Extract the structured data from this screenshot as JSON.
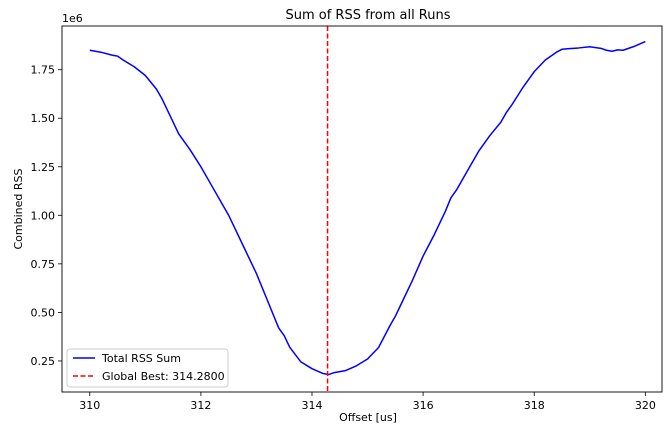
{
  "chart_data": {
    "type": "line",
    "title": "Sum of RSS from all Runs",
    "xlabel": "Offset [us]",
    "ylabel": "Combined RSS",
    "y_offset_label": "1e6",
    "xlim": [
      309.5,
      320.3
    ],
    "ylim": [
      90000,
      1975000
    ],
    "x_ticks": [
      310,
      312,
      314,
      316,
      318,
      320
    ],
    "x_tick_labels": [
      "310",
      "312",
      "314",
      "316",
      "318",
      "320"
    ],
    "y_ticks": [
      250000,
      500000,
      750000,
      1000000,
      1250000,
      1500000,
      1750000
    ],
    "y_tick_labels": [
      "0.25",
      "0.50",
      "0.75",
      "1.00",
      "1.25",
      "1.50",
      "1.75"
    ],
    "grid": false,
    "legend_position": "lower-left",
    "series": [
      {
        "name": "Total RSS Sum",
        "color": "#0000ff",
        "style": "solid",
        "x": [
          310.0,
          310.2,
          310.4,
          310.5,
          310.6,
          310.8,
          311.0,
          311.2,
          311.3,
          311.5,
          311.6,
          311.8,
          312.0,
          312.2,
          312.4,
          312.5,
          312.6,
          312.8,
          313.0,
          313.2,
          313.4,
          313.5,
          313.6,
          313.8,
          314.0,
          314.2,
          314.3,
          314.4,
          314.5,
          314.6,
          314.8,
          315.0,
          315.2,
          315.4,
          315.5,
          315.6,
          315.8,
          316.0,
          316.2,
          316.4,
          316.5,
          316.6,
          316.8,
          317.0,
          317.2,
          317.4,
          317.5,
          317.6,
          317.8,
          318.0,
          318.2,
          318.4,
          318.5,
          318.6,
          318.8,
          319.0,
          319.2,
          319.3,
          319.4,
          319.5,
          319.6,
          319.8,
          320.0
        ],
        "y": [
          1850000,
          1840000,
          1825000,
          1820000,
          1800000,
          1765000,
          1720000,
          1650000,
          1600000,
          1480000,
          1420000,
          1340000,
          1250000,
          1150000,
          1050000,
          1000000,
          940000,
          820000,
          700000,
          560000,
          420000,
          380000,
          320000,
          245000,
          210000,
          185000,
          180000,
          190000,
          195000,
          200000,
          225000,
          260000,
          320000,
          430000,
          480000,
          540000,
          660000,
          790000,
          900000,
          1020000,
          1090000,
          1130000,
          1230000,
          1330000,
          1410000,
          1480000,
          1530000,
          1570000,
          1660000,
          1740000,
          1800000,
          1840000,
          1855000,
          1858000,
          1862000,
          1868000,
          1860000,
          1850000,
          1845000,
          1852000,
          1850000,
          1870000,
          1895000
        ]
      },
      {
        "name": "Global Best: 314.2800",
        "color": "#ff0000",
        "style": "dashed",
        "vline_x": 314.28
      }
    ]
  }
}
